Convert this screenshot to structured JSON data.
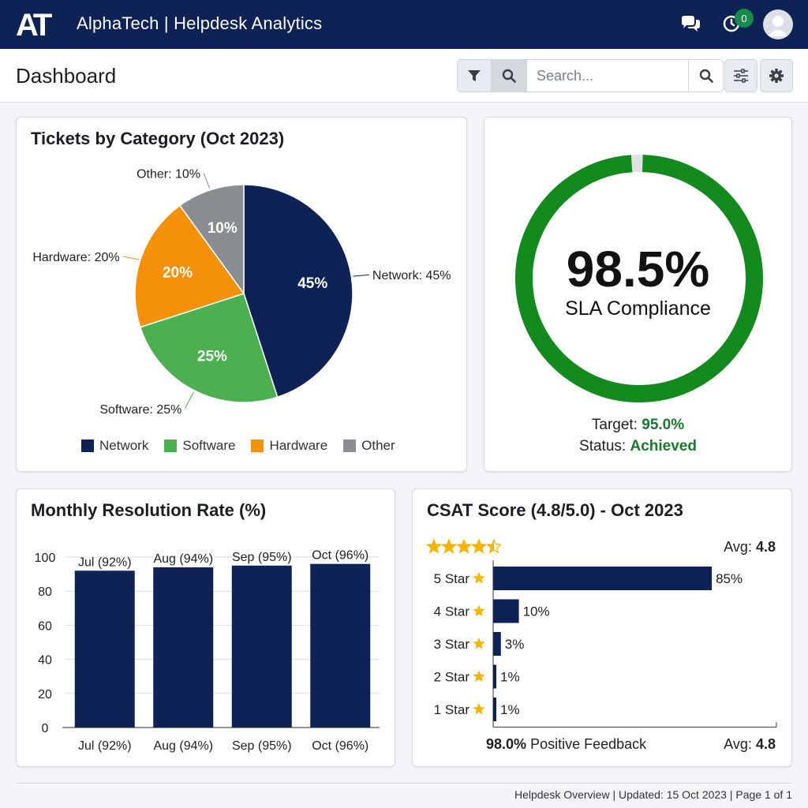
{
  "app": {
    "brand": "AT",
    "title": "AlphaTech | Helpdesk Analytics",
    "notification_count": "0"
  },
  "header": {
    "page_title": "Dashboard",
    "search_placeholder": "Search..."
  },
  "icons": {
    "top": [
      "chat-icon",
      "clock-alert-icon",
      "user-avatar-icon"
    ],
    "toolbar": [
      "filter-icon",
      "search-icon",
      "search-submit-icon",
      "sliders-icon",
      "gear-icon"
    ]
  },
  "colors": {
    "navy": "#0e2255",
    "network": "#0e2255",
    "software": "#4caf50",
    "hardware": "#f5900a",
    "other": "#8a8d92",
    "sla_green": "#138a1e",
    "star": "#f4b400"
  },
  "pie_card": {
    "title": "Tickets by Category (Oct 2023)",
    "chart_data": {
      "type": "pie",
      "title": "Tickets by Category (Oct 2023)",
      "slices": [
        {
          "name": "Network",
          "value": 45,
          "label": "45%",
          "callout": "Network: 45%"
        },
        {
          "name": "Software",
          "value": 25,
          "label": "25%",
          "callout": "Software: 25%"
        },
        {
          "name": "Hardware",
          "value": 20,
          "label": "20%",
          "callout": "Hardware: 20%"
        },
        {
          "name": "Other",
          "value": 10,
          "label": "10%",
          "callout": "Other: 10%"
        }
      ],
      "legend": [
        "Network",
        "Software",
        "Hardware",
        "Other"
      ],
      "legend_position": "bottom"
    }
  },
  "sla_card": {
    "value": "98.5%",
    "label": "SLA Compliance",
    "compliance_fraction": 0.985,
    "target_label": "Target:",
    "target_value": "95.0%",
    "status_label": "Status:",
    "status_value": "Achieved"
  },
  "bar_card": {
    "title": "Monthly Resolution Rate (%)",
    "chart_data": {
      "type": "bar",
      "categories": [
        "Jul (92%)",
        "Aug (94%)",
        "Sep (95%)",
        "Oct (96%)"
      ],
      "values": [
        92,
        94,
        95,
        96
      ],
      "data_labels": [
        "Jul (92%)",
        "Aug (94%)",
        "Sep (95%)",
        "Oct (96%)"
      ],
      "ylim": [
        0,
        100
      ],
      "yticks": [
        "0",
        "20",
        "40",
        "60",
        "80",
        "100"
      ],
      "grid": true
    }
  },
  "csat_card": {
    "title": "CSAT Score (4.8/5.0) - Oct 2023",
    "rating": 4.5,
    "avg_label": "Avg:",
    "avg_value": "4.8",
    "positive_value": "98.0%",
    "positive_label": "Positive Feedback",
    "chart_data": {
      "type": "bar",
      "orientation": "horizontal",
      "categories": [
        "5 Star",
        "4 Star",
        "3 Star",
        "2 Star",
        "1 Star"
      ],
      "values": [
        85,
        10,
        3,
        1,
        1
      ],
      "data_labels": [
        "85%",
        "10%",
        "3%",
        "1%",
        "1%"
      ]
    }
  },
  "footer": {
    "text": "Helpdesk Overview | Updated: 15 Oct 2023 | Page 1 of 1"
  }
}
